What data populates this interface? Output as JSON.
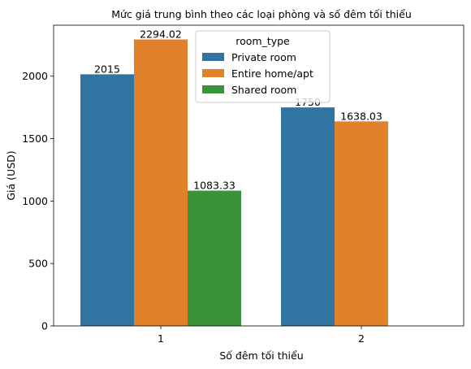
{
  "chart_data": {
    "type": "bar",
    "title": "Mức giá trung bình theo các loại phòng và số đêm tối thiểu",
    "xlabel": "Số đêm tối thiểu",
    "ylabel": "Giá (USD)",
    "categories": [
      "1",
      "2"
    ],
    "ylim": [
      0,
      2408.2
    ],
    "yticks": [
      0,
      500,
      1000,
      1500,
      2000
    ],
    "grid": false,
    "legend": {
      "title": "room_type",
      "placement": "top-center"
    },
    "series": [
      {
        "name": "Private room",
        "color": "#3274a1",
        "values": [
          2015,
          1750
        ],
        "labels": [
          "2015",
          "1750"
        ]
      },
      {
        "name": "Entire home/apt",
        "color": "#e1812c",
        "values": [
          2294.02,
          1638.03
        ],
        "labels": [
          "2294.02",
          "1638.03"
        ]
      },
      {
        "name": "Shared room",
        "color": "#3a923a",
        "values": [
          1083.33,
          null
        ],
        "labels": [
          "1083.33",
          null
        ]
      }
    ]
  }
}
